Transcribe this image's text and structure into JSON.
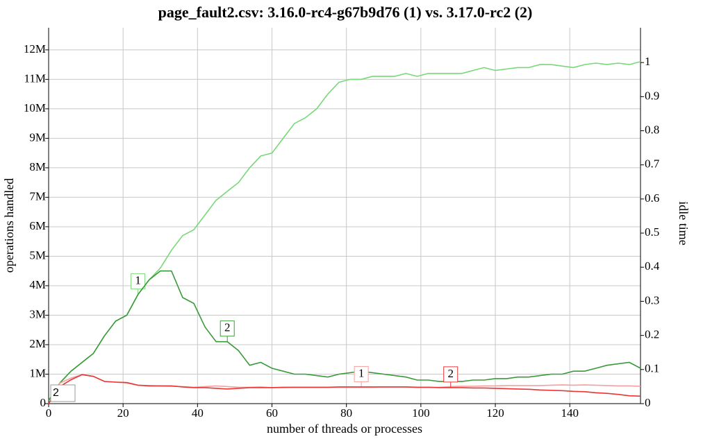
{
  "chart_data": {
    "type": "line",
    "title": "page_fault2.csv: 3.16.0-rc4-g67b9d76 (1) vs. 3.17.0-rc2 (2)",
    "x_label": "number of threads or processes",
    "y_label": "operations handled",
    "y2_label": "idle time",
    "inset_label": "2",
    "grid": true,
    "x": [
      0,
      3,
      6,
      9,
      12,
      15,
      18,
      21,
      24,
      27,
      30,
      33,
      36,
      39,
      42,
      45,
      48,
      51,
      54,
      57,
      60,
      63,
      66,
      69,
      72,
      75,
      78,
      81,
      84,
      87,
      90,
      93,
      96,
      99,
      102,
      105,
      108,
      111,
      114,
      117,
      120,
      123,
      126,
      129,
      132,
      135,
      138,
      141,
      144,
      147,
      150,
      153,
      156,
      159
    ],
    "xlim": [
      0,
      159
    ],
    "xticks": [
      0,
      20,
      40,
      60,
      80,
      100,
      120,
      140
    ],
    "ylim": [
      0,
      12750000
    ],
    "yticks": [
      0,
      {
        "value": 1000000,
        "label": "1M"
      },
      {
        "value": 2000000,
        "label": "2M"
      },
      {
        "value": 3000000,
        "label": "3M"
      },
      {
        "value": 4000000,
        "label": "4M"
      },
      {
        "value": 5000000,
        "label": "5M"
      },
      {
        "value": 6000000,
        "label": "6M"
      },
      {
        "value": 7000000,
        "label": "7M"
      },
      {
        "value": 8000000,
        "label": "8M"
      },
      {
        "value": 9000000,
        "label": "9M"
      },
      {
        "value": 10000000,
        "label": "10M"
      },
      {
        "value": 11000000,
        "label": "11M"
      },
      {
        "value": 12000000,
        "label": "12M"
      }
    ],
    "y2lim": [
      0,
      1.102
    ],
    "y2ticks": [
      0,
      0.1,
      0.2,
      0.3,
      0.4,
      0.5,
      0.6,
      0.7,
      0.8,
      0.9,
      1
    ],
    "series": [
      {
        "label": "1",
        "color": "#77d877",
        "values": [
          100000,
          700000,
          1100000,
          1400000,
          1700000,
          2300000,
          2800000,
          3000000,
          3700000,
          4200000,
          4600000,
          5200000,
          5700000,
          5900000,
          6400000,
          6900000,
          7200000,
          7500000,
          8000000,
          8400000,
          8500000,
          9000000,
          9500000,
          9700000,
          10000000,
          10500000,
          10900000,
          11000000,
          11000000,
          11100000,
          11100000,
          11100000,
          11200000,
          11100000,
          11200000,
          11200000,
          11200000,
          11200000,
          11300000,
          11400000,
          11300000,
          11350000,
          11400000,
          11400000,
          11500000,
          11500000,
          11450000,
          11400000,
          11500000,
          11550000,
          11500000,
          11550000,
          11500000,
          11600000
        ]
      },
      {
        "label": "2",
        "color": "#3a9a3a",
        "values": [
          100000,
          700000,
          1100000,
          1400000,
          1700000,
          2300000,
          2800000,
          3000000,
          3700000,
          4200000,
          4500000,
          4500000,
          3600000,
          3400000,
          2600000,
          2100000,
          2100000,
          1800000,
          1300000,
          1400000,
          1200000,
          1100000,
          1000000,
          1000000,
          950000,
          900000,
          1000000,
          1050000,
          1100000,
          1050000,
          1000000,
          950000,
          900000,
          800000,
          800000,
          750000,
          750000,
          750000,
          800000,
          800000,
          850000,
          850000,
          900000,
          900000,
          950000,
          1000000,
          1000000,
          1100000,
          1100000,
          1200000,
          1300000,
          1350000,
          1400000,
          1200000
        ]
      },
      {
        "label": "1",
        "color": "#f4a0a0",
        "axis": "y2",
        "values": [
          0,
          0.06,
          0.075,
          0.085,
          0.08,
          0.065,
          0.063,
          0.06,
          0.054,
          0.053,
          0.052,
          0.051,
          0.05,
          0.048,
          0.05,
          0.052,
          0.05,
          0.048,
          0.048,
          0.049,
          0.047,
          0.047,
          0.048,
          0.048,
          0.048,
          0.048,
          0.048,
          0.048,
          0.048,
          0.048,
          0.049,
          0.049,
          0.049,
          0.048,
          0.048,
          0.048,
          0.05,
          0.051,
          0.051,
          0.052,
          0.052,
          0.053,
          0.053,
          0.053,
          0.053,
          0.054,
          0.055,
          0.054,
          0.055,
          0.054,
          0.053,
          0.052,
          0.052,
          0.051
        ]
      },
      {
        "label": "2",
        "color": "#e83535",
        "axis": "y2",
        "values": [
          0,
          0.05,
          0.07,
          0.085,
          0.08,
          0.065,
          0.063,
          0.062,
          0.054,
          0.052,
          0.052,
          0.052,
          0.049,
          0.047,
          0.047,
          0.045,
          0.043,
          0.045,
          0.047,
          0.047,
          0.047,
          0.048,
          0.048,
          0.048,
          0.048,
          0.048,
          0.049,
          0.049,
          0.049,
          0.049,
          0.049,
          0.049,
          0.049,
          0.048,
          0.048,
          0.047,
          0.047,
          0.047,
          0.046,
          0.046,
          0.045,
          0.044,
          0.043,
          0.042,
          0.04,
          0.039,
          0.038,
          0.036,
          0.035,
          0.032,
          0.03,
          0.027,
          0.023,
          0.022
        ]
      }
    ]
  }
}
